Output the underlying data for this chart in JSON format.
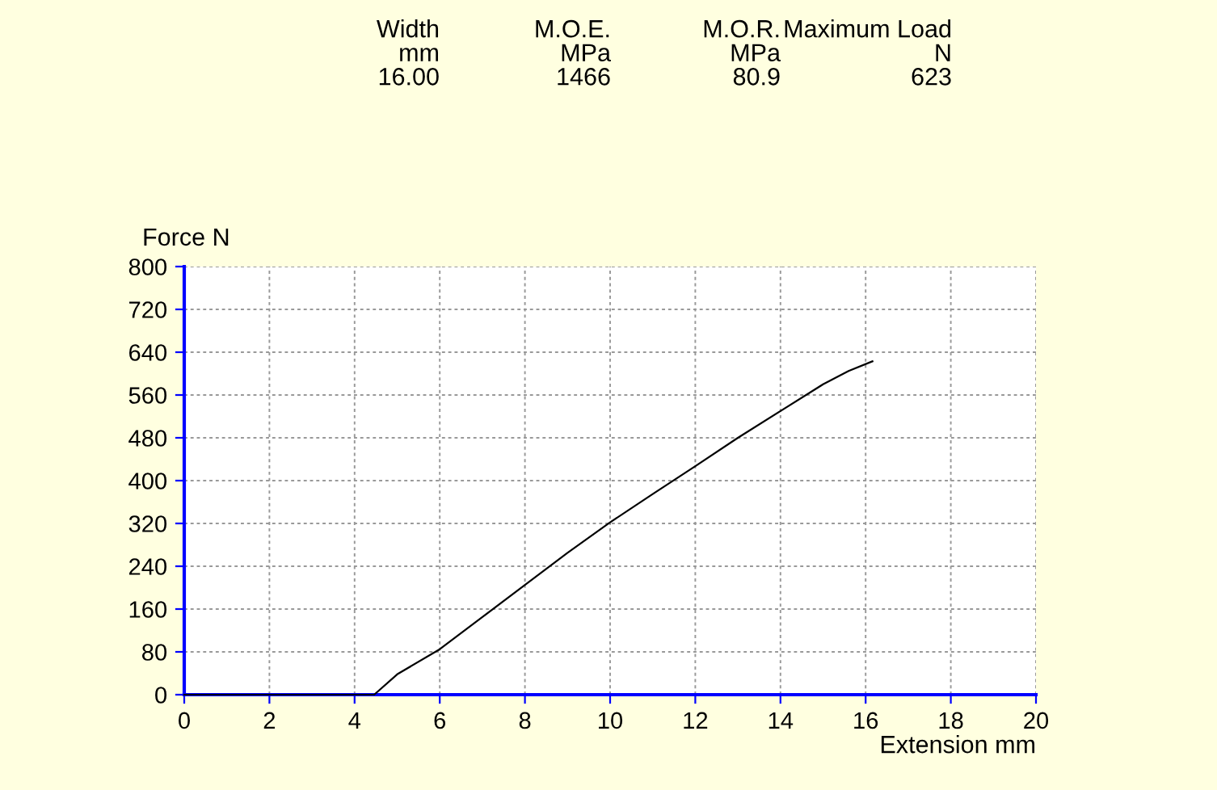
{
  "chart_data": {
    "type": "line",
    "xlabel": "Extension mm",
    "ylabel": "Force N",
    "annotations": [
      "Width\nmm\n16.00",
      "M.O.E.\nMPa\n1466",
      "M.O.R.\nMPa\n80.9",
      "Maximum Load\nN\n623"
    ],
    "x": [
      0,
      2,
      4,
      4.46,
      5,
      6,
      7,
      8,
      9,
      10,
      11,
      12,
      13,
      14,
      15,
      15.6,
      16.16
    ],
    "series": [
      {
        "color": "#000000",
        "values": [
          0,
          0,
          0,
          0,
          38,
          85,
          145,
          205,
          265,
          322,
          375,
          427,
          480,
          530,
          580,
          605,
          623
        ]
      }
    ],
    "xlim": [
      0,
      20
    ],
    "xticks": [
      0,
      2,
      4,
      6,
      8,
      10,
      12,
      14,
      16,
      18,
      20
    ],
    "ylim": [
      0,
      800
    ],
    "yticks": [
      0,
      80,
      160,
      240,
      320,
      400,
      480,
      560,
      640,
      720,
      800
    ],
    "grid": true,
    "legend": false,
    "marker": "none",
    "line_style": "solid"
  }
}
